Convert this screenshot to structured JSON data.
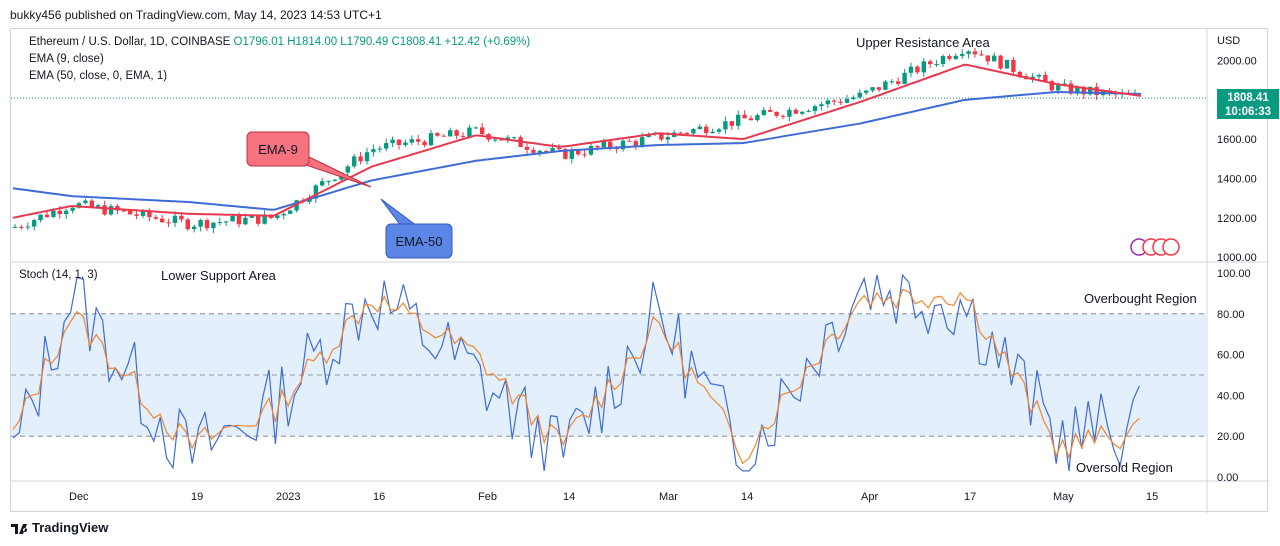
{
  "header": {
    "note": "bukky456 published on TradingView.com, May 14, 2023 14:53 UTC+1"
  },
  "legend": {
    "symbol": "Ethereum / U.S. Dollar, 1D, COINBASE",
    "ohlc": "O1796.01  H1814.00  L1790.49  C1808.41  +12.42 (+0.69%)",
    "ema9": "EMA (9, close)",
    "ema50": "EMA (50, close, 0, EMA, 1)",
    "stoch": "Stoch (14, 1, 3)"
  },
  "price_axis": {
    "currency": "USD",
    "ticks": [
      "2000.00",
      "1800.00",
      "1600.00",
      "1400.00",
      "1200.00",
      "1000.00"
    ]
  },
  "stoch_axis": {
    "ticks": [
      "100.00",
      "80.00",
      "60.00",
      "40.00",
      "20.00",
      "0.00"
    ]
  },
  "time_axis": {
    "ticks": [
      "Dec",
      "19",
      "2023",
      "16",
      "Feb",
      "14",
      "Mar",
      "14",
      "Apr",
      "17",
      "May",
      "15"
    ]
  },
  "price_tag": {
    "price": "1808.41",
    "countdown": "10:06:33"
  },
  "annotations": {
    "upper_resistance": "Upper Resistance Area",
    "lower_support": "Lower Support Area",
    "ema9_label": "EMA-9",
    "ema50_label": "EMA-50",
    "overbought": "Overbought Region",
    "oversold": "Oversold Region"
  },
  "footer": {
    "brand": "TradingView"
  },
  "colors": {
    "up": "#089981",
    "down": "#f23645",
    "ema9": "#e8384f",
    "ema50": "#3e6bd6",
    "stoch_k": "#3e6bd6",
    "stoch_d": "#f0862f",
    "band": "#e3f0fb"
  },
  "chart_data": [
    {
      "type": "candlestick",
      "title": "Ethereum / U.S. Dollar, 1D, COINBASE",
      "ylabel": "USD",
      "ylim": [
        980,
        2140
      ],
      "x": [
        "2022-11-22",
        "2022-12-01",
        "2022-12-19",
        "2023-01-01",
        "2023-01-16",
        "2023-02-01",
        "2023-02-14",
        "2023-03-01",
        "2023-03-14",
        "2023-04-01",
        "2023-04-17",
        "2023-05-01",
        "2023-05-14"
      ],
      "series": [
        {
          "name": "Close",
          "values": [
            1150,
            1270,
            1170,
            1200,
            1550,
            1640,
            1520,
            1610,
            1700,
            1820,
            2070,
            1860,
            1808.41
          ]
        },
        {
          "name": "EMA (9, close)",
          "values": [
            1200,
            1260,
            1220,
            1210,
            1460,
            1620,
            1560,
            1630,
            1600,
            1790,
            1980,
            1880,
            1820
          ]
        },
        {
          "name": "EMA (50, close, 0, EMA, 1)",
          "values": [
            1350,
            1310,
            1280,
            1240,
            1390,
            1490,
            1540,
            1570,
            1580,
            1680,
            1800,
            1840,
            1830
          ]
        }
      ]
    },
    {
      "type": "line",
      "title": "Stoch (14, 1, 3)",
      "ylim": [
        0,
        100
      ],
      "x": [
        "2022-11-22",
        "2022-12-01",
        "2022-12-19",
        "2023-01-01",
        "2023-01-16",
        "2023-02-01",
        "2023-02-14",
        "2023-03-01",
        "2023-03-14",
        "2023-04-01",
        "2023-04-17",
        "2023-05-01",
        "2023-05-14"
      ],
      "series": [
        {
          "values": [
            10,
            90,
            10,
            35,
            90,
            50,
            10,
            80,
            10,
            95,
            85,
            20,
            25
          ]
        },
        {
          "values": [
            20,
            80,
            15,
            33,
            88,
            60,
            15,
            75,
            12,
            88,
            90,
            15,
            22
          ]
        }
      ]
    }
  ]
}
